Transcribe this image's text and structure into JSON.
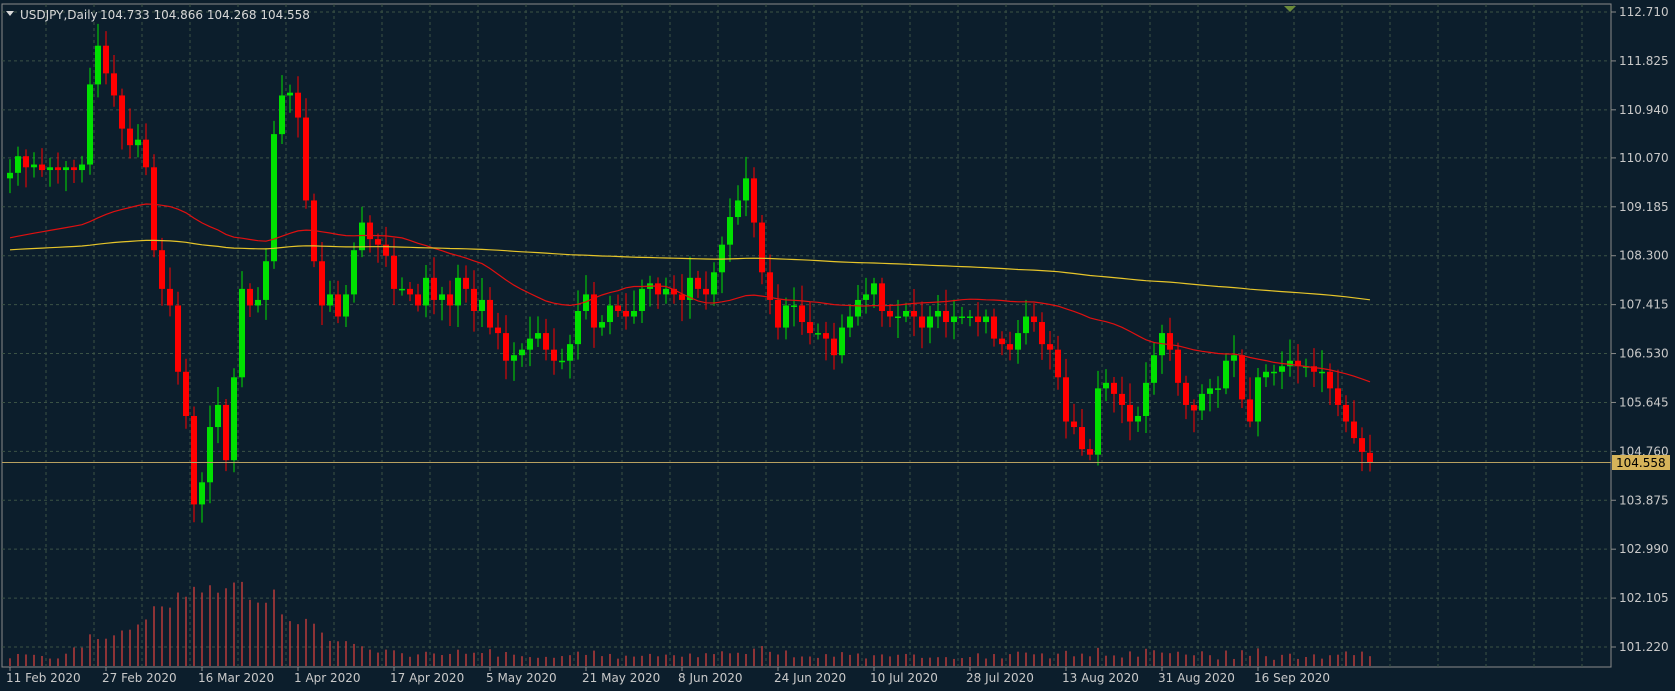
{
  "window": {
    "symbol_label": "USDJPY,Daily",
    "ohlc_label": "104.733 104.866 104.268 104.558"
  },
  "colors": {
    "background": "#0c1e2c",
    "grid": "#3b5245",
    "axis_text": "#c9c9c9",
    "bull_candle": "#00e000",
    "bear_candle": "#ff0000",
    "ma_fast": "#e01010",
    "ma_slow": "#e6c52a",
    "volume": "#b83a3a",
    "bid_line": "#b8a060",
    "price_badge": "#d6b35a"
  },
  "chart_data": {
    "type": "candlestick",
    "title": "USDJPY,Daily",
    "current_ohlc": {
      "open": 104.733,
      "high": 104.866,
      "low": 104.268,
      "close": 104.558
    },
    "current_price_label": "104.558",
    "y_ticks": [
      "112.710",
      "111.825",
      "110.940",
      "110.070",
      "109.185",
      "108.300",
      "107.415",
      "106.530",
      "105.645",
      "104.760",
      "103.875",
      "102.990",
      "102.105",
      "101.220"
    ],
    "x_ticks": [
      "11 Feb 2020",
      "27 Feb 2020",
      "16 Mar 2020",
      "1 Apr 2020",
      "17 Apr 2020",
      "5 May 2020",
      "21 May 2020",
      "8 Jun 2020",
      "24 Jun 2020",
      "10 Jul 2020",
      "28 Jul 2020",
      "13 Aug 2020",
      "31 Aug 2020",
      "16 Sep 2020"
    ],
    "x_tick_index": [
      0,
      12,
      24,
      36,
      48,
      60,
      72,
      84,
      96,
      108,
      120,
      132,
      144,
      156
    ],
    "ylim": [
      100.95,
      112.8
    ],
    "grid": true,
    "closes": [
      109.8,
      110.1,
      109.9,
      109.95,
      109.85,
      109.9,
      109.85,
      109.9,
      109.85,
      109.95,
      111.4,
      112.1,
      111.6,
      111.2,
      110.6,
      110.3,
      110.4,
      109.9,
      108.4,
      107.7,
      107.4,
      106.2,
      105.4,
      103.8,
      104.2,
      105.2,
      105.6,
      104.6,
      106.1,
      107.7,
      107.4,
      107.5,
      108.2,
      110.5,
      111.2,
      111.25,
      110.8,
      109.3,
      108.2,
      107.4,
      107.6,
      107.2,
      107.6,
      108.4,
      108.9,
      108.6,
      108.5,
      108.3,
      107.7,
      107.7,
      107.6,
      107.4,
      107.9,
      107.5,
      107.6,
      107.4,
      107.9,
      107.7,
      107.3,
      107.5,
      107.0,
      106.9,
      106.4,
      106.5,
      106.6,
      106.8,
      106.9,
      106.6,
      106.4,
      106.4,
      106.7,
      107.3,
      107.6,
      107.0,
      107.1,
      107.4,
      107.3,
      107.2,
      107.3,
      107.7,
      107.8,
      107.6,
      107.7,
      107.6,
      107.5,
      107.9,
      107.7,
      107.6,
      108.0,
      108.5,
      109.0,
      109.3,
      109.7,
      108.9,
      108.0,
      107.5,
      107.0,
      107.4,
      107.4,
      107.1,
      106.9,
      106.9,
      106.8,
      106.5,
      107.0,
      107.2,
      107.5,
      107.6,
      107.8,
      107.3,
      107.2,
      107.2,
      107.3,
      107.2,
      107.0,
      107.2,
      107.3,
      107.1,
      107.2,
      107.2,
      107.2,
      107.1,
      107.2,
      106.8,
      106.7,
      106.6,
      106.9,
      107.2,
      107.1,
      106.7,
      106.6,
      106.1,
      105.3,
      105.2,
      104.8,
      104.7,
      105.9,
      106.0,
      105.8,
      105.6,
      105.3,
      105.4,
      106.0,
      106.5,
      106.9,
      106.6,
      106.0,
      105.6,
      105.5,
      105.8,
      105.9,
      105.9,
      106.4,
      106.5,
      105.7,
      105.3,
      106.1,
      106.2,
      106.2,
      106.3,
      106.4,
      106.3,
      106.3,
      106.2,
      106.2,
      105.9,
      105.6,
      105.3,
      105.0,
      104.75,
      104.56
    ],
    "ma_fast_shape": "red moving average from ~109.3 falling to ~106.0",
    "ma_slow_shape": "yellow moving average from ~108.4 falling to ~107.7"
  }
}
